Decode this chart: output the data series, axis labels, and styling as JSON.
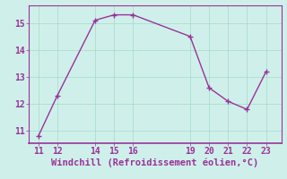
{
  "x": [
    11,
    12,
    14,
    15,
    16,
    19,
    20,
    21,
    22,
    23
  ],
  "y": [
    10.8,
    12.3,
    15.1,
    15.3,
    15.3,
    14.5,
    12.6,
    12.1,
    11.8,
    13.2
  ],
  "line_color": "#993399",
  "marker_color": "#993399",
  "background_color": "#cff0ea",
  "grid_color": "#aaddcc",
  "xlabel": "Windchill (Refroidissement éolien,°C)",
  "xlabel_color": "#993399",
  "tick_color": "#993399",
  "spine_color": "#993399",
  "xlim": [
    10.5,
    23.8
  ],
  "ylim": [
    10.55,
    15.65
  ],
  "xticks": [
    11,
    12,
    14,
    15,
    16,
    19,
    20,
    21,
    22,
    23
  ],
  "yticks": [
    11,
    12,
    13,
    14,
    15
  ],
  "xlabel_fontsize": 7.5,
  "tick_fontsize": 7,
  "linewidth": 1.0,
  "markersize": 2.5
}
